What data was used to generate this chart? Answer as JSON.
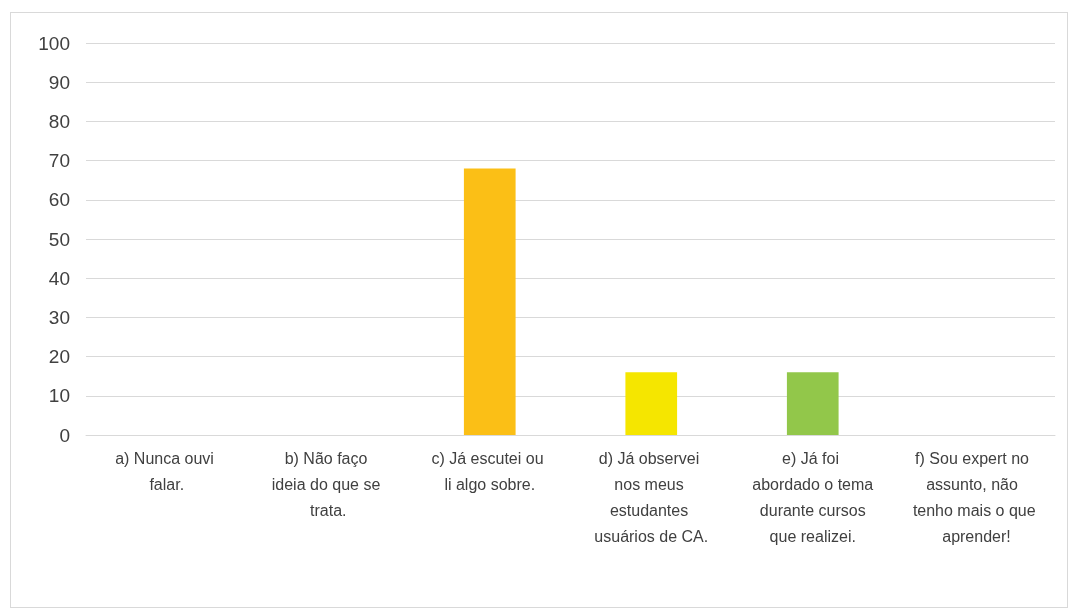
{
  "chart_data": {
    "type": "bar",
    "categories": [
      "a) Nunca ouvi falar.",
      "b) Não faço ideia do que se trata.",
      "c) Já escutei ou li algo sobre.",
      "d) Já observei nos meus estudantes usuários de CA.",
      "e) Já foi abordado o tema durante cursos que realizei.",
      "f) Sou expert no assunto, não tenho mais o que aprender!"
    ],
    "values": [
      0,
      0,
      68,
      16,
      16,
      0
    ],
    "colors": [
      "#4472c4",
      "#ed7d31",
      "#fbbf16",
      "#f5e600",
      "#92c74a",
      "#5b9bd5"
    ],
    "ylim": [
      0,
      100
    ],
    "yticks": [
      0,
      10,
      20,
      30,
      40,
      50,
      60,
      70,
      80,
      90,
      100
    ],
    "grid": "y"
  }
}
